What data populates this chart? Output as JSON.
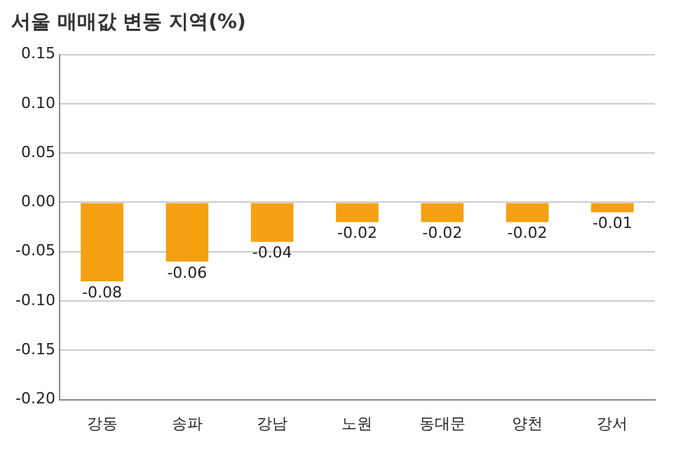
{
  "chart_data": {
    "type": "bar",
    "title": "서울 매매값 변동 지역(%)",
    "categories": [
      "강동",
      "송파",
      "강남",
      "노원",
      "동대문",
      "양천",
      "강서"
    ],
    "values": [
      -0.08,
      -0.06,
      -0.04,
      -0.02,
      -0.02,
      -0.02,
      -0.01
    ],
    "color": "#f5a010",
    "ylim": [
      -0.2,
      0.15
    ],
    "yticks": [
      {
        "value": 0.15,
        "label": "0.15"
      },
      {
        "value": 0.1,
        "label": "0.10"
      },
      {
        "value": 0.05,
        "label": "0.05"
      },
      {
        "value": 0,
        "label": "0.00"
      },
      {
        "value": -0.05,
        "label": "-0.05"
      },
      {
        "value": -0.1,
        "label": "-0.10"
      },
      {
        "value": -0.15,
        "label": "-0.15"
      },
      {
        "value": -0.2,
        "label": "-0.20"
      }
    ],
    "grid": "y",
    "legend": false,
    "data_labels": true
  }
}
